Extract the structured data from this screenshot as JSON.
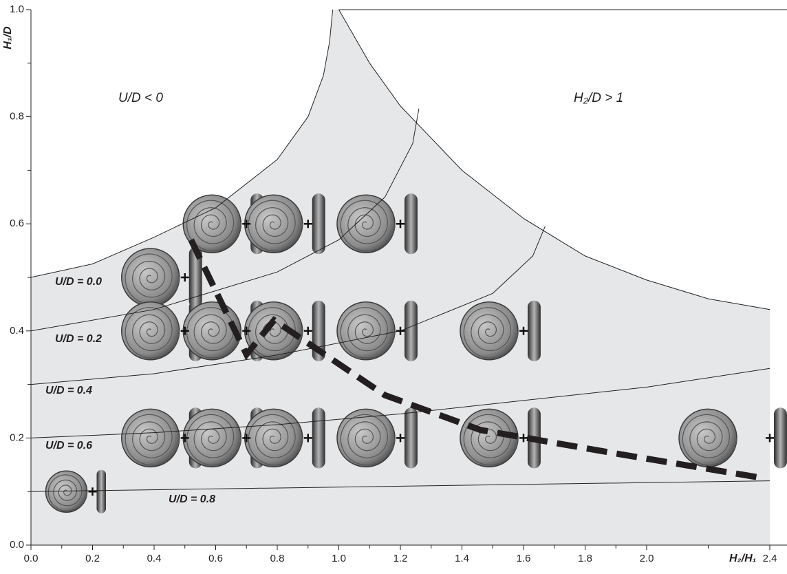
{
  "chart_data": {
    "type": "line",
    "xlabel": "H₂/H₁",
    "ylabel": "H₁/D",
    "xlim": [
      0,
      2.4
    ],
    "ylim": [
      0,
      1.0
    ],
    "xticks": [
      {
        "value": 0,
        "label": "0.0"
      },
      0.2,
      0.4,
      0.6,
      0.8,
      {
        "value": 1,
        "label": "1.0"
      },
      1.2,
      1.4,
      1.6,
      1.8,
      {
        "value": 2,
        "label": "2.0"
      },
      2.4
    ],
    "yticks": [
      {
        "value": 0,
        "label": "0.0"
      },
      0.2,
      0.4,
      0.6,
      0.8,
      {
        "value": 1,
        "label": "1.0"
      }
    ],
    "annotations": [
      "U/D < 0",
      "H₂/D > 1"
    ],
    "series": [
      {
        "name": "U/D = 0.0",
        "color": "#222222",
        "x": [
          0,
          0.2,
          0.4,
          0.6,
          0.8,
          0.9,
          0.95,
          0.97,
          0.98
        ],
        "values": [
          0.5,
          0.525,
          0.575,
          0.63,
          0.72,
          0.8,
          0.877,
          0.94,
          1.0
        ]
      },
      {
        "name": "U/D = 0.2",
        "color": "#222222",
        "x": [
          0,
          0.4,
          0.8,
          1.0,
          1.15,
          1.24,
          1.26
        ],
        "values": [
          0.4,
          0.44,
          0.51,
          0.57,
          0.65,
          0.75,
          0.815
        ]
      },
      {
        "name": "U/D = 0.4",
        "color": "#222222",
        "x": [
          0,
          0.4,
          0.8,
          1.2,
          1.5,
          1.63,
          1.67
        ],
        "values": [
          0.3,
          0.32,
          0.355,
          0.4,
          0.47,
          0.54,
          0.595
        ]
      },
      {
        "name": "U/D = 0.6",
        "color": "#222222",
        "x": [
          0,
          0.4,
          0.8,
          1.2,
          1.6,
          2.0,
          2.4
        ],
        "values": [
          0.2,
          0.21,
          0.225,
          0.245,
          0.27,
          0.295,
          0.33
        ]
      },
      {
        "name": "U/D = 0.8",
        "color": "#222222",
        "x": [
          0,
          2.4
        ],
        "values": [
          0.1,
          0.12
        ]
      }
    ],
    "boundary": {
      "color": "#222222",
      "x": [
        1.0,
        1.1,
        1.2,
        1.3,
        1.4,
        1.6,
        1.8,
        2.0,
        2.2,
        2.4
      ],
      "values": [
        1.0,
        0.9,
        0.82,
        0.76,
        0.7,
        0.61,
        0.54,
        0.495,
        0.46,
        0.44
      ]
    },
    "trend": {
      "color": "#231f20",
      "x": [
        0.52,
        0.7,
        0.79,
        1.15,
        1.46,
        1.91,
        2.38
      ],
      "values": [
        0.57,
        0.356,
        0.42,
        0.28,
        0.215,
        0.17,
        0.125
      ]
    },
    "region_color": "#e6e7e9",
    "points": {
      "x": [
        0.5,
        0.7,
        0.9,
        1.2,
        0.5,
        0.7,
        0.9,
        1.2,
        1.6,
        0.5,
        0.7,
        0.9,
        1.2,
        1.6,
        2.4,
        0.2
      ],
      "values": [
        0.5,
        0.6,
        0.6,
        0.6,
        0.4,
        0.4,
        0.4,
        0.4,
        0.4,
        0.2,
        0.2,
        0.2,
        0.2,
        0.2,
        0.2,
        0.1
      ]
    }
  }
}
